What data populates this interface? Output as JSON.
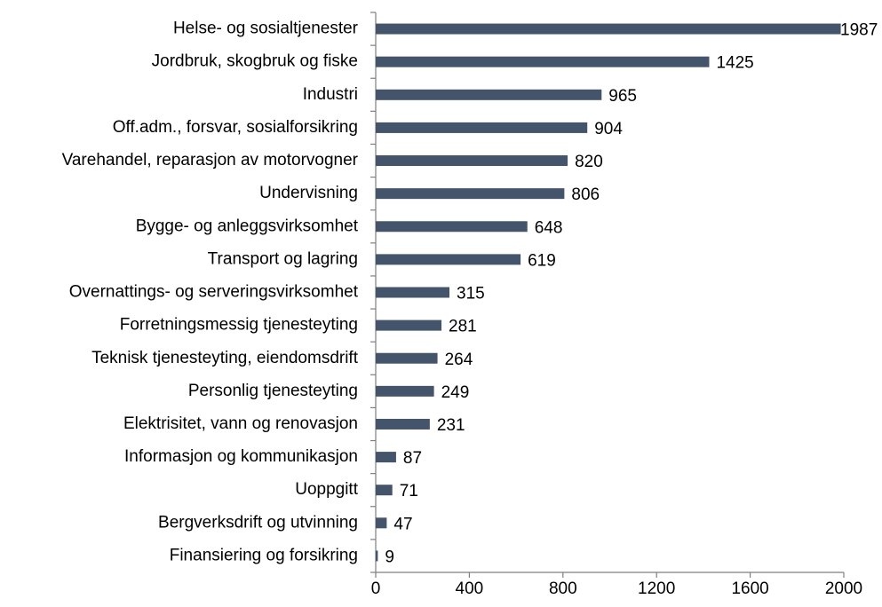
{
  "chart_data": {
    "type": "barh",
    "categories": [
      "Helse- og sosialtjenester",
      "Jordbruk, skogbruk og fiske",
      "Industri",
      "Off.adm., forsvar, sosialforsikring",
      "Varehandel, reparasjon av motorvogner",
      "Undervisning",
      "Bygge- og anleggsvirksomhet",
      "Transport og lagring",
      "Overnattings- og serveringsvirksomhet",
      "Forretningsmessig tjenesteyting",
      "Teknisk tjenesteyting, eiendomsdrift",
      "Personlig tjenesteyting",
      "Elektrisitet, vann og renovasjon",
      "Informasjon og kommunikasjon",
      "Uoppgitt",
      "Bergverksdrift og utvinning",
      "Finansiering og forsikring"
    ],
    "values": [
      1987,
      1425,
      965,
      904,
      820,
      806,
      648,
      619,
      315,
      281,
      264,
      249,
      231,
      87,
      71,
      47,
      9
    ],
    "color": "#44546a",
    "xlim": [
      0,
      2000
    ],
    "xticks": [
      0,
      400,
      800,
      1200,
      1600,
      2000
    ]
  }
}
